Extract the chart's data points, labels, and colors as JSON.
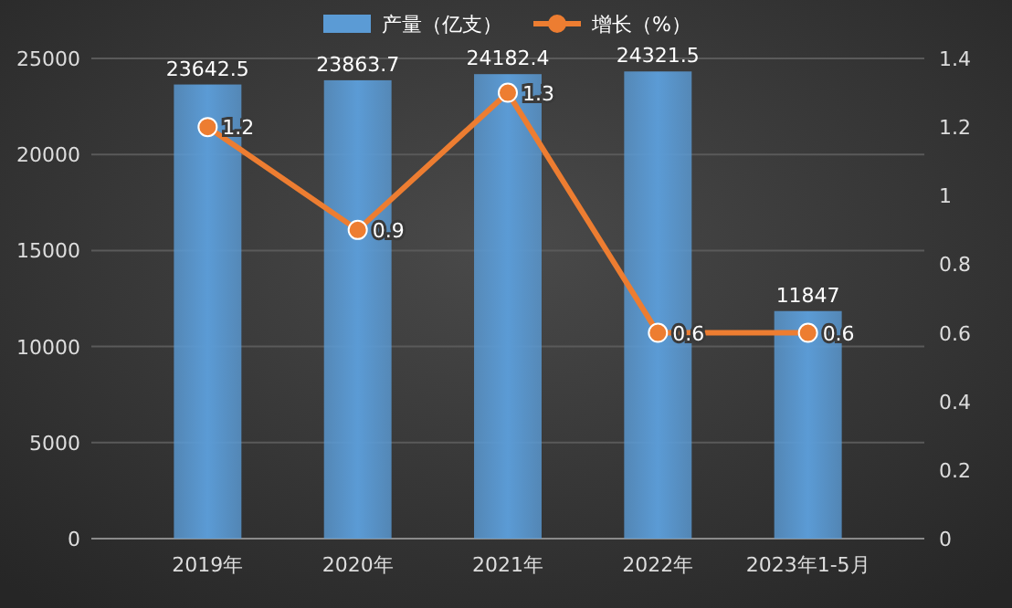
{
  "chart_data": {
    "type": "bar",
    "categories": [
      "2019年",
      "2020年",
      "2021年",
      "2022年",
      "2023年1-5月"
    ],
    "series": [
      {
        "name": "产量（亿支）",
        "color": "#5b9bd5",
        "values": [
          23642.5,
          23863.7,
          24182.4,
          24321.5,
          11847
        ]
      },
      {
        "name": "增长（%）",
        "type": "line",
        "axis": "y2",
        "color": "#ed7d31",
        "values": [
          1.2,
          0.9,
          1.3,
          0.6,
          0.6
        ]
      }
    ],
    "ylim": [
      0,
      25000
    ],
    "yticks": [
      0,
      5000,
      10000,
      15000,
      20000,
      25000
    ],
    "y2lim": [
      0,
      1.4
    ],
    "y2ticks": [
      0,
      0.2,
      0.4,
      0.6,
      0.8,
      1,
      1.2,
      1.4
    ],
    "grid": "y",
    "legend": "top",
    "marker": "circle",
    "line_style": "solid",
    "data_labels": true
  }
}
